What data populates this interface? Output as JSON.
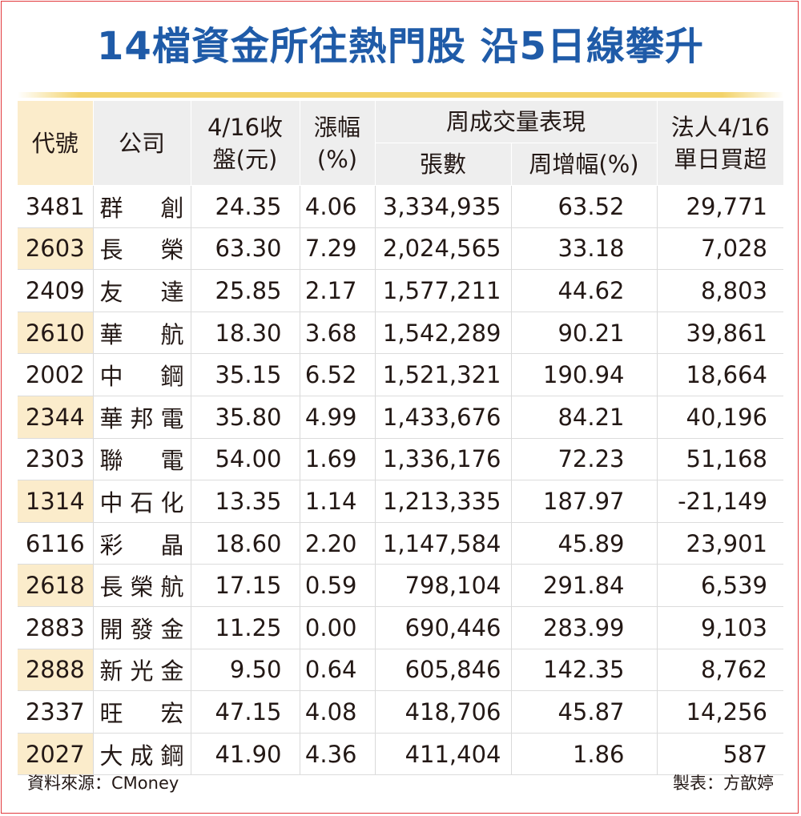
{
  "title": "14檔資金所往熱門股  沿5日線攀升",
  "headers": {
    "code": "代號",
    "company": "公司",
    "close_line1": "4/16收",
    "close_line2": "盤(元)",
    "change_line1": "漲幅",
    "change_line2": "(%)",
    "volume_group": "周成交量表現",
    "volume_lots": "張數",
    "volume_growth": "周增幅(%)",
    "inst_line1": "法人4/16",
    "inst_line2": "單日買超"
  },
  "rows": [
    {
      "code": "3481",
      "company": "群創",
      "close": "24.35",
      "change": "4.06",
      "lots": "3,334,935",
      "growth": "63.52",
      "inst": "29,771"
    },
    {
      "code": "2603",
      "company": "長榮",
      "close": "63.30",
      "change": "7.29",
      "lots": "2,024,565",
      "growth": "33.18",
      "inst": "7,028"
    },
    {
      "code": "2409",
      "company": "友達",
      "close": "25.85",
      "change": "2.17",
      "lots": "1,577,211",
      "growth": "44.62",
      "inst": "8,803"
    },
    {
      "code": "2610",
      "company": "華航",
      "close": "18.30",
      "change": "3.68",
      "lots": "1,542,289",
      "growth": "90.21",
      "inst": "39,861"
    },
    {
      "code": "2002",
      "company": "中鋼",
      "close": "35.15",
      "change": "6.52",
      "lots": "1,521,321",
      "growth": "190.94",
      "inst": "18,664"
    },
    {
      "code": "2344",
      "company": "華邦電",
      "close": "35.80",
      "change": "4.99",
      "lots": "1,433,676",
      "growth": "84.21",
      "inst": "40,196"
    },
    {
      "code": "2303",
      "company": "聯電",
      "close": "54.00",
      "change": "1.69",
      "lots": "1,336,176",
      "growth": "72.23",
      "inst": "51,168"
    },
    {
      "code": "1314",
      "company": "中石化",
      "close": "13.35",
      "change": "1.14",
      "lots": "1,213,335",
      "growth": "187.97",
      "inst": "-21,149"
    },
    {
      "code": "6116",
      "company": "彩晶",
      "close": "18.60",
      "change": "2.20",
      "lots": "1,147,584",
      "growth": "45.89",
      "inst": "23,901"
    },
    {
      "code": "2618",
      "company": "長榮航",
      "close": "17.15",
      "change": "0.59",
      "lots": "798,104",
      "growth": "291.84",
      "inst": "6,539"
    },
    {
      "code": "2883",
      "company": "開發金",
      "close": "11.25",
      "change": "0.00",
      "lots": "690,446",
      "growth": "283.99",
      "inst": "9,103"
    },
    {
      "code": "2888",
      "company": "新光金",
      "close": "9.50",
      "change": "0.64",
      "lots": "605,846",
      "growth": "142.35",
      "inst": "8,762"
    },
    {
      "code": "2337",
      "company": "旺宏",
      "close": "47.15",
      "change": "4.08",
      "lots": "418,706",
      "growth": "45.87",
      "inst": "14,256"
    },
    {
      "code": "2027",
      "company": "大成鋼",
      "close": "41.90",
      "change": "4.36",
      "lots": "411,404",
      "growth": "1.86",
      "inst": "587"
    }
  ],
  "footer": {
    "source": "資料來源：CMoney",
    "credit": "製表：方歆婷"
  },
  "colors": {
    "title": "#1f5ba8",
    "code_shade": "#fbeccb",
    "header_bg": "#eeeeee",
    "frame": "#e2393d",
    "title_rule": "#f3d36b"
  }
}
